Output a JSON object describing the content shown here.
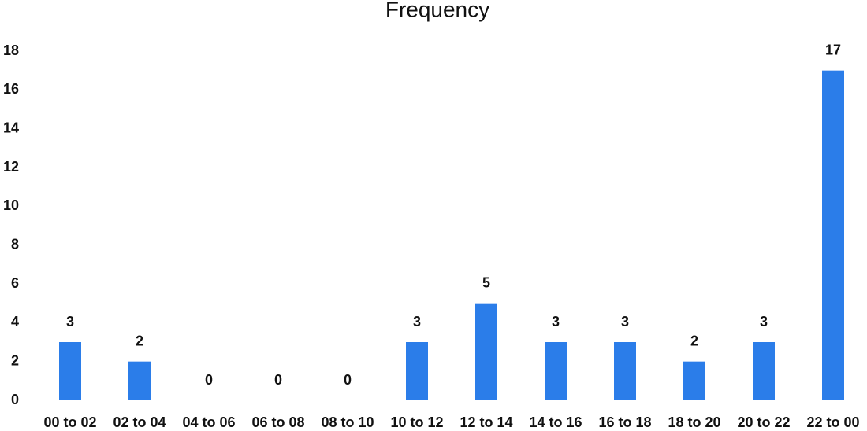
{
  "chart_data": {
    "type": "bar",
    "title": "Frequency",
    "categories": [
      "00 to 02",
      "02 to 04",
      "04 to 06",
      "06 to 08",
      "08 to 10",
      "10 to 12",
      "12 to 14",
      "14 to 16",
      "16 to 18",
      "18 to 20",
      "20 to 22",
      "22 to 00"
    ],
    "values": [
      3,
      2,
      0,
      0,
      0,
      3,
      5,
      3,
      3,
      2,
      3,
      17
    ],
    "color": "#2b7de9",
    "ylim": [
      0,
      18
    ],
    "yticks": [
      0,
      2,
      4,
      6,
      8,
      10,
      12,
      14,
      16,
      18
    ],
    "grid": false
  }
}
